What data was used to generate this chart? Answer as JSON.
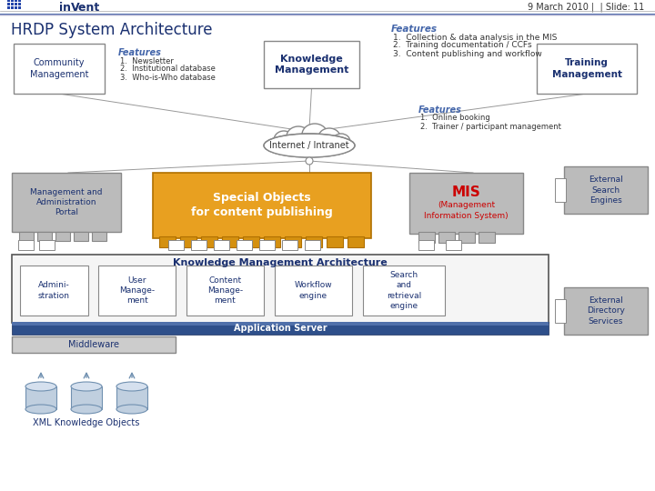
{
  "title": "HRDP System Architecture",
  "header_date": "9 March 2010 |  | Slide: 11",
  "bg_color": "#ffffff",
  "top_features_title": "Features",
  "top_features": [
    "1.  Collection & data analysis in the MIS",
    "2.  Training documentation / CCFs",
    "3.  Content publishing and workflow"
  ],
  "community_label": "Community\nManagement",
  "community_features_title": "Features",
  "community_features": [
    "1.  Newsletter",
    "2.  Institutional database",
    "3.  Who-is-Who database"
  ],
  "knowledge_label": "Knowledge\nManagement",
  "training_label": "Training\nManagement",
  "training_features_title": "Features",
  "training_features": [
    "1.  Online booking",
    "2.  Trainer / participant management"
  ],
  "internet_label": "Internet / Intranet",
  "mgmt_portal_label": "Management and\nAdministration\nPortal",
  "special_objects_label": "Special Objects\nfor content publishing",
  "mis_label": "MIS",
  "mis_sub_label": "(Management\nInformation System)",
  "kma_label": "Knowledge Management Architecture",
  "admin_label": "Admini-\nstration",
  "user_mgmt_label": "User\nManage-\nment",
  "content_mgmt_label": "Content\nManage-\nment",
  "workflow_label": "Workflow\nengine",
  "search_label": "Search\nand\nretrieval\nengine",
  "app_server_label": "Application Server",
  "middleware_label": "Middleware",
  "xml_label": "XML Knowledge Objects",
  "ext_search_label": "External\nSearch\nEngines",
  "ext_dir_label": "External\nDirectory\nServices",
  "orange_color": "#E8A020",
  "gold_color": "#D49010",
  "gray_box_color": "#BBBBBB",
  "light_gray": "#CCCCCC",
  "mis_red": "#CC0000",
  "features_blue": "#4466AA",
  "line_color": "#999999",
  "box_border": "#888888",
  "header_text_color": "#333333",
  "title_color": "#1A3070",
  "box_text_color": "#1A3070",
  "dark_blue_bar": "#2E4F8A",
  "app_bar_top": "#5070AA"
}
